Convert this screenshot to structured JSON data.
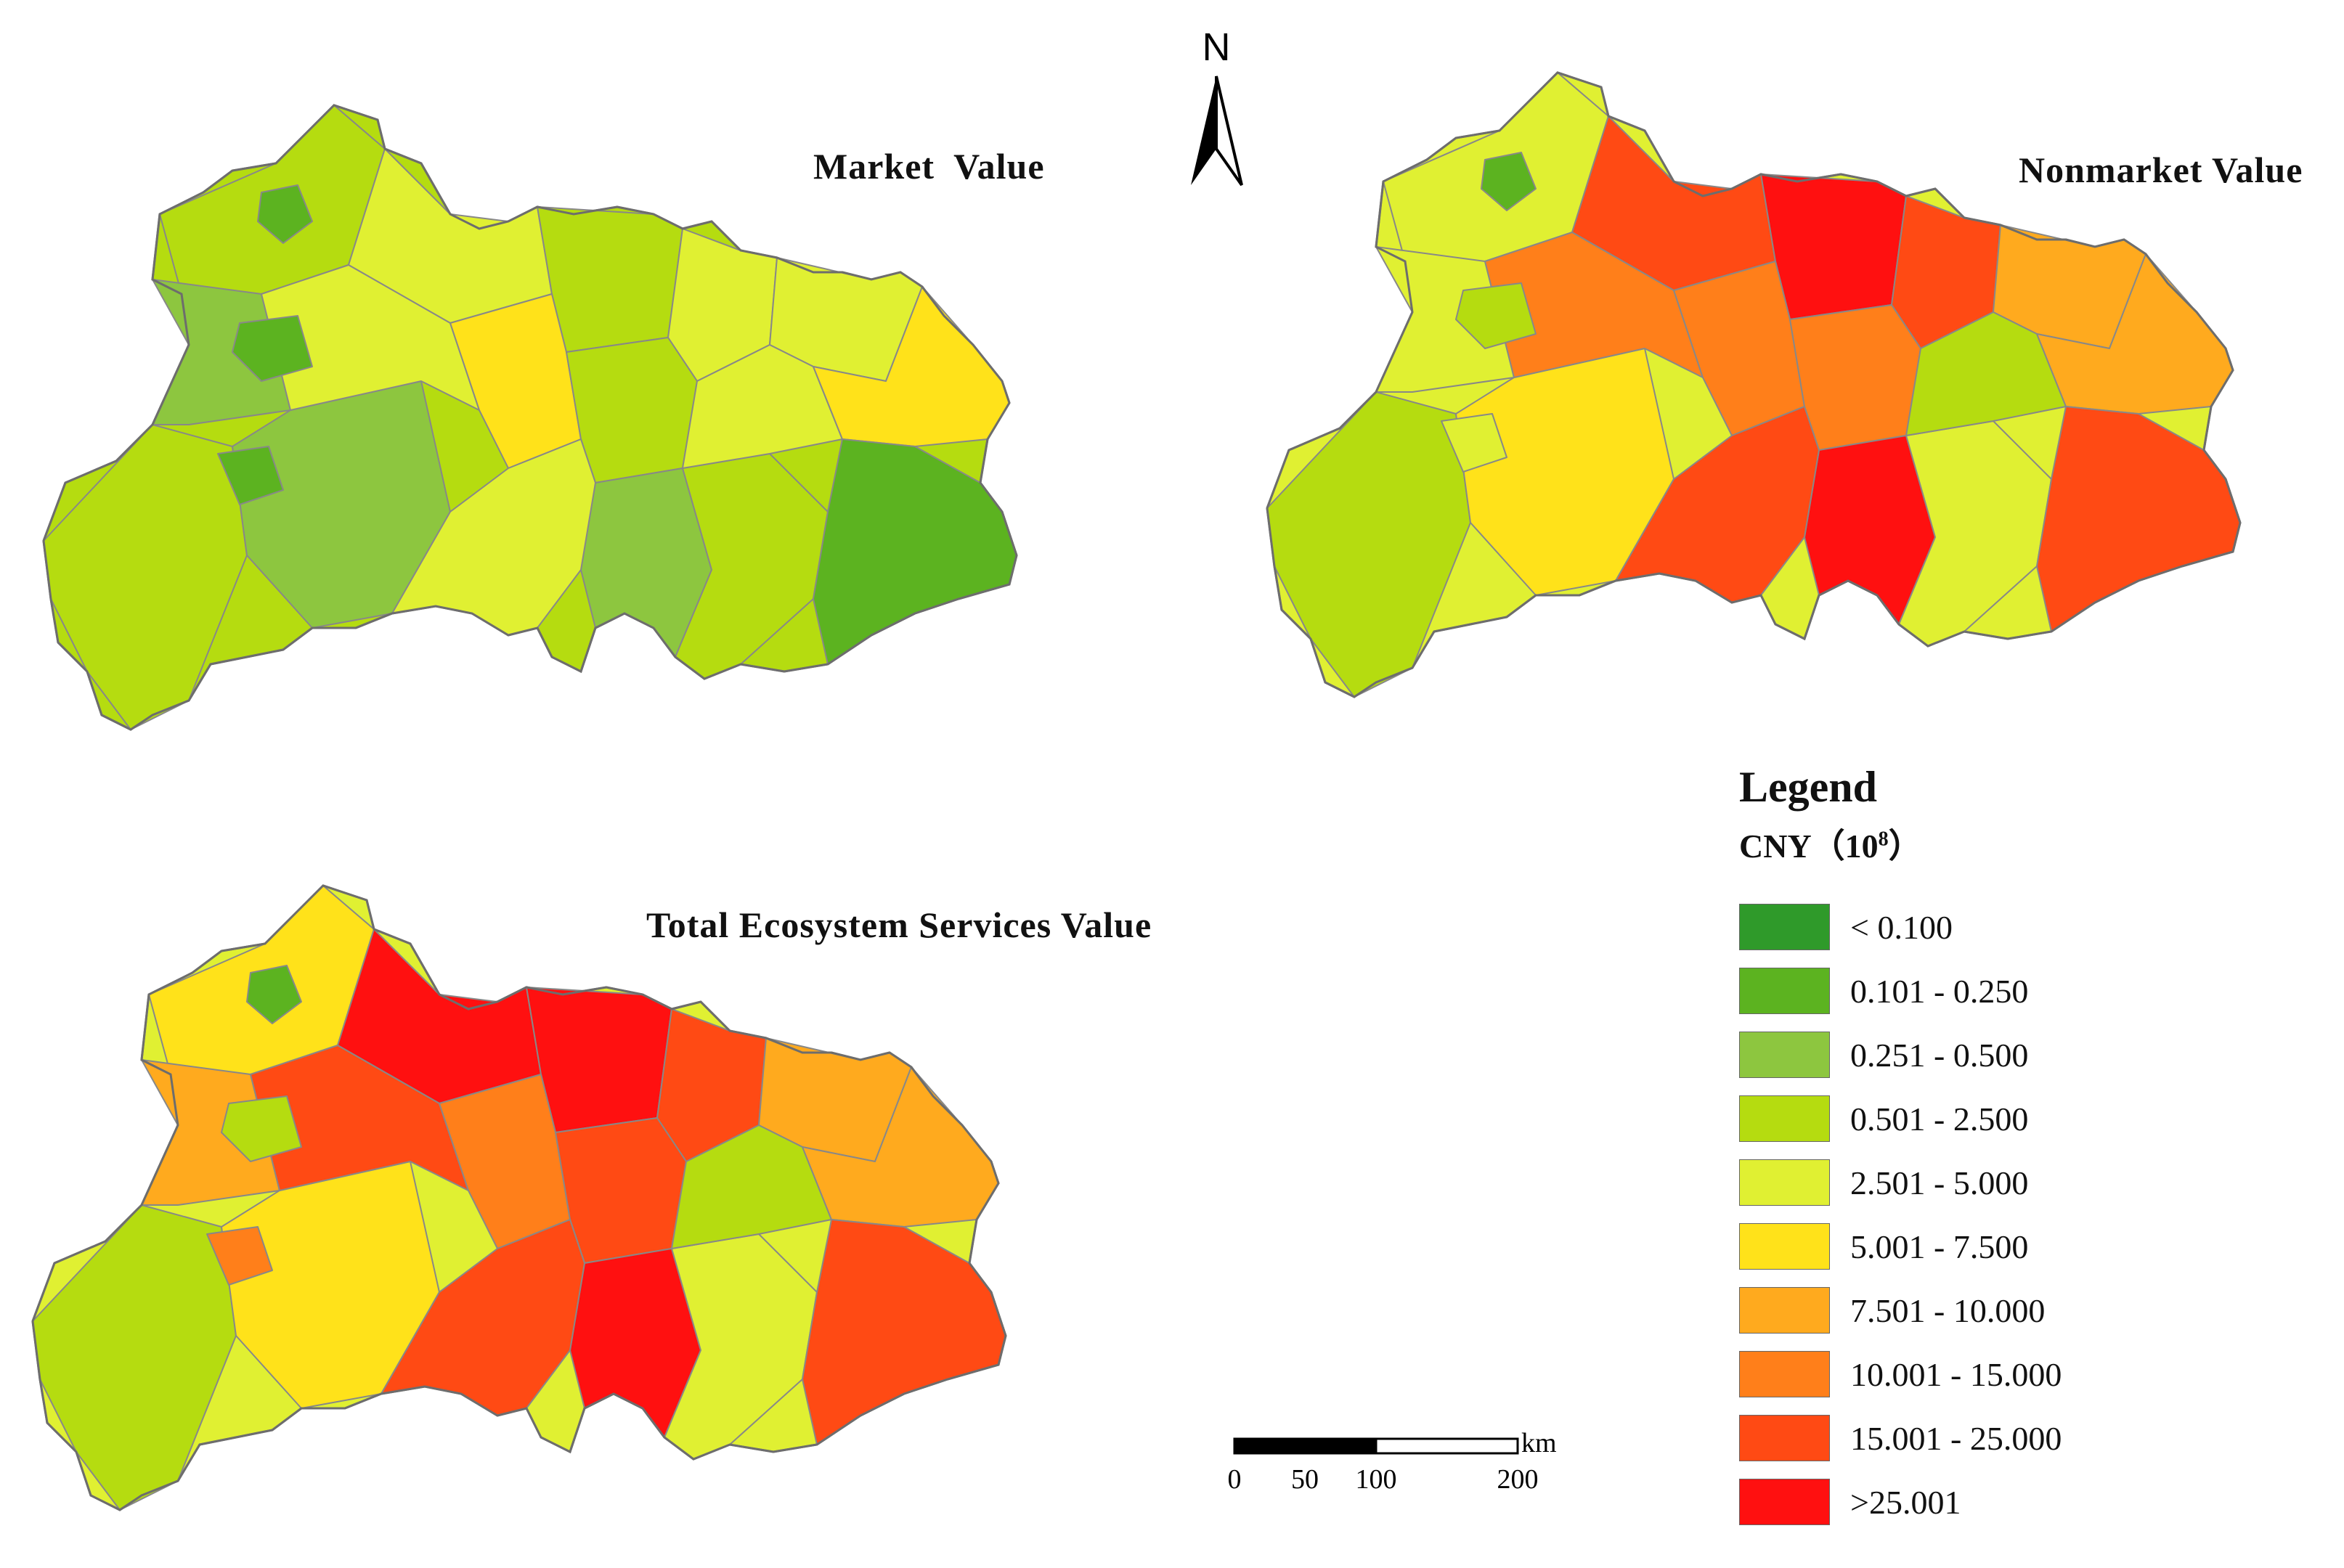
{
  "titles": {
    "market": "Market  Value",
    "nonmarket": "Nonmarket Value",
    "total": "Total Ecosystem Services Value"
  },
  "north_arrow": {
    "label": "N"
  },
  "legend": {
    "title": "Legend",
    "unit_prefix": "CNY（10",
    "unit_exp": "8",
    "unit_suffix": "）",
    "classes": [
      {
        "label": "< 0.100",
        "color": "#2f9a2a"
      },
      {
        "label": "0.101 - 0.250",
        "color": "#5cb320"
      },
      {
        "label": "0.251 - 0.500",
        "color": "#8dc63f"
      },
      {
        "label": "0.501 - 2.500",
        "color": "#b5dc10"
      },
      {
        "label": "2.501 - 5.000",
        "color": "#e0f032"
      },
      {
        "label": "5.001 - 7.500",
        "color": "#ffe21a"
      },
      {
        "label": "7.501 - 10.000",
        "color": "#ffaa1e"
      },
      {
        "label": "10.001 - 15.000",
        "color": "#ff7f1a"
      },
      {
        "label": "15.001 - 25.000",
        "color": "#ff4a14"
      },
      {
        "label": ">25.001",
        "color": "#ff1010"
      }
    ]
  },
  "scale_bar": {
    "unit": "km",
    "ticks": [
      "0",
      "50",
      "100",
      "200"
    ]
  },
  "maps": {
    "market": {
      "base_class": 3,
      "regions": [
        {
          "cls": 3
        },
        {
          "cls": 2
        },
        {
          "cls": 3
        },
        {
          "cls": 2
        },
        {
          "cls": 4
        },
        {
          "cls": 4
        },
        {
          "cls": 3
        },
        {
          "cls": 4
        },
        {
          "cls": 5
        },
        {
          "cls": 4
        },
        {
          "cls": 3
        },
        {
          "cls": 2
        },
        {
          "cls": 4
        },
        {
          "cls": 3
        },
        {
          "cls": 4
        },
        {
          "cls": 5
        },
        {
          "cls": 1
        },
        {
          "cls": 1
        },
        {
          "cls": 1
        },
        {
          "cls": 1
        }
      ]
    },
    "nonmarket": {
      "base_class": 4,
      "regions": [
        {
          "cls": 4
        },
        {
          "cls": 4
        },
        {
          "cls": 3
        },
        {
          "cls": 5
        },
        {
          "cls": 8
        },
        {
          "cls": 7
        },
        {
          "cls": 9
        },
        {
          "cls": 8
        },
        {
          "cls": 7
        },
        {
          "cls": 6
        },
        {
          "cls": 7
        },
        {
          "cls": 9
        },
        {
          "cls": 8
        },
        {
          "cls": 4
        },
        {
          "cls": 3
        },
        {
          "cls": 6
        },
        {
          "cls": 1
        },
        {
          "cls": 3
        },
        {
          "cls": 8
        },
        {
          "cls": 4
        }
      ]
    },
    "total": {
      "base_class": 4,
      "regions": [
        {
          "cls": 5
        },
        {
          "cls": 6
        },
        {
          "cls": 3
        },
        {
          "cls": 5
        },
        {
          "cls": 9
        },
        {
          "cls": 8
        },
        {
          "cls": 9
        },
        {
          "cls": 8
        },
        {
          "cls": 7
        },
        {
          "cls": 6
        },
        {
          "cls": 8
        },
        {
          "cls": 9
        },
        {
          "cls": 8
        },
        {
          "cls": 4
        },
        {
          "cls": 3
        },
        {
          "cls": 6
        },
        {
          "cls": 1
        },
        {
          "cls": 3
        },
        {
          "cls": 8
        },
        {
          "cls": 7
        }
      ]
    }
  }
}
